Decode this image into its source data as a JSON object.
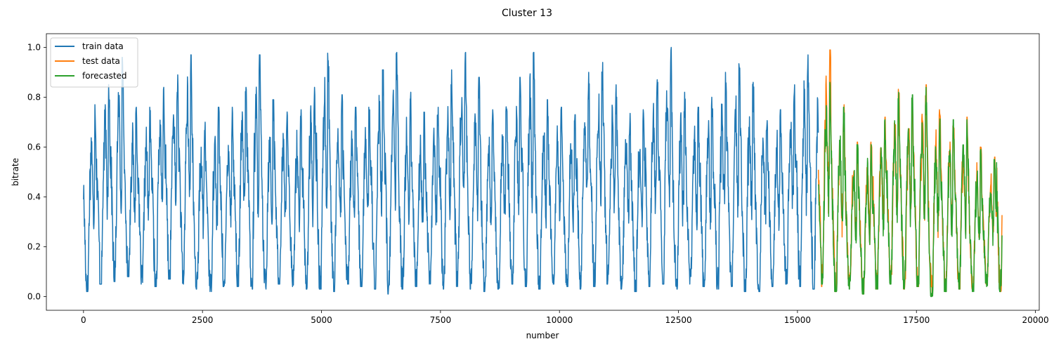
{
  "chart_data": {
    "type": "line",
    "title": "Cluster 13",
    "xlabel": "number",
    "ylabel": "bitrate",
    "xlim": [
      -780,
      20080
    ],
    "ylim": [
      -0.055,
      1.055
    ],
    "xticks": [
      0,
      2500,
      5000,
      7500,
      10000,
      12500,
      15000,
      17500,
      20000
    ],
    "xtick_labels": [
      "0",
      "2500",
      "5000",
      "7500",
      "10000",
      "12500",
      "15000",
      "17500",
      "20000"
    ],
    "yticks": [
      0.0,
      0.2,
      0.4,
      0.6,
      0.8,
      1.0
    ],
    "ytick_labels": [
      "0.0",
      "0.2",
      "0.4",
      "0.6",
      "0.8",
      "1.0"
    ],
    "grid": false,
    "legend_position": "top-left",
    "series": [
      {
        "name": "train data",
        "color": "#1f77b4",
        "x_range": [
          0,
          15440
        ],
        "period": 288,
        "peak_values": [
          0.77,
          0.87,
          0.96,
          0.76,
          0.76,
          0.84,
          0.89,
          0.97,
          0.7,
          0.76,
          0.76,
          0.84,
          0.97,
          0.79,
          0.75,
          0.75,
          0.84,
          1.0,
          0.81,
          0.76,
          0.76,
          0.91,
          0.98,
          0.82,
          0.74,
          0.76,
          0.91,
          0.98,
          0.88,
          0.75,
          0.79,
          0.88,
          0.98,
          0.79,
          0.76,
          0.73,
          0.9,
          0.94,
          0.85,
          0.74,
          0.75,
          0.89,
          1.0,
          0.82,
          0.76,
          0.8,
          0.9,
          0.94,
          0.86,
          0.74,
          0.75,
          0.85,
          0.97,
          0.96
        ],
        "trough_values": [
          0.02,
          0.05,
          0.06,
          0.08,
          0.05,
          0.04,
          0.07,
          0.05,
          0.03,
          0.02,
          0.04,
          0.04,
          0.03,
          0.03,
          0.05,
          0.04,
          0.03,
          0.03,
          0.02,
          0.05,
          0.04,
          0.03,
          0.01,
          0.03,
          0.04,
          0.05,
          0.03,
          0.04,
          0.03,
          0.02,
          0.03,
          0.05,
          0.04,
          0.03,
          0.05,
          0.04,
          0.03,
          0.04,
          0.05,
          0.03,
          0.02,
          0.04,
          0.05,
          0.03,
          0.05,
          0.04,
          0.03,
          0.04,
          0.02,
          0.02,
          0.04,
          0.05,
          0.04,
          0.03
        ]
      },
      {
        "name": "test data",
        "color": "#ff7f0e",
        "x_range": [
          15440,
          19300
        ],
        "period": 288,
        "peak_values": [
          0.99,
          0.77,
          0.62,
          0.62,
          0.72,
          0.84,
          0.82,
          0.85,
          0.75,
          0.72,
          0.72,
          0.6,
          0.56,
          0.86,
          0.77,
          0.83,
          0.62
        ],
        "trough_values": [
          0.04,
          0.02,
          0.04,
          0.01,
          0.03,
          0.06,
          0.03,
          0.04,
          0.01,
          0.02,
          0.03,
          0.03,
          0.05,
          0.02,
          0.03,
          0.01,
          0.03
        ]
      },
      {
        "name": "forecasted",
        "color": "#2ca02c",
        "x_range": [
          15440,
          19300
        ],
        "period": 288,
        "peak_values": [
          0.86,
          0.76,
          0.61,
          0.61,
          0.71,
          0.82,
          0.81,
          0.84,
          0.74,
          0.71,
          0.71,
          0.59,
          0.55,
          0.85,
          0.76,
          0.82,
          0.61
        ],
        "trough_values": [
          0.05,
          0.02,
          0.03,
          0.01,
          0.03,
          0.05,
          0.03,
          0.04,
          0.0,
          0.02,
          0.03,
          0.02,
          0.04,
          0.02,
          0.03,
          0.0,
          0.03
        ]
      }
    ]
  }
}
